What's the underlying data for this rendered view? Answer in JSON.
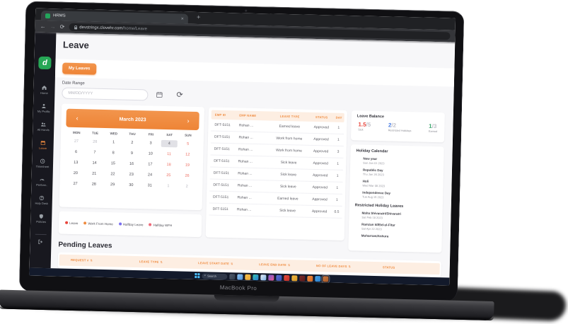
{
  "laptop": {
    "label": "MacBook Pro"
  },
  "browser": {
    "tab_title": "HRMS",
    "url_host": "devstringx.clovehr.com",
    "url_path": "/home/Leave"
  },
  "icons": {
    "back": "←",
    "forward": "→",
    "refresh": "⟳",
    "close_tab": "×",
    "new_tab": "+",
    "chevron_left": "‹",
    "chevron_right": "›",
    "sort": "⇅",
    "page_refresh": "⟳",
    "search": "⌕"
  },
  "sidebar": {
    "logo_letter": "d",
    "items": [
      {
        "label": "Home",
        "icon": "home"
      },
      {
        "label": "My Profile",
        "icon": "user"
      },
      {
        "label": "All Hands",
        "icon": "users"
      },
      {
        "label": "Leave",
        "icon": "calendar",
        "active": true
      },
      {
        "label": "Timesheet",
        "icon": "clock"
      },
      {
        "label": "Perform..",
        "icon": "gauge"
      },
      {
        "label": "Help Desk",
        "icon": "help"
      },
      {
        "label": "Policies",
        "icon": "shield"
      }
    ]
  },
  "page": {
    "title": "Leave",
    "my_leaves_button": "My Leaves",
    "date_range_label": "Date Range",
    "date_placeholder": "MM/DD/YYYY",
    "pending_title": "Pending Leaves"
  },
  "calendar": {
    "month": "March 2023",
    "weekdays": [
      "MON",
      "TUE",
      "WED",
      "THU",
      "FRI",
      "SAT",
      "SUN"
    ],
    "weeks": [
      [
        {
          "d": "27",
          "muted": true
        },
        {
          "d": "28",
          "muted": true
        },
        {
          "d": "1"
        },
        {
          "d": "2"
        },
        {
          "d": "3"
        },
        {
          "d": "4",
          "today": true
        },
        {
          "d": "5",
          "weekend": true
        }
      ],
      [
        {
          "d": "6"
        },
        {
          "d": "7"
        },
        {
          "d": "8"
        },
        {
          "d": "9"
        },
        {
          "d": "10"
        },
        {
          "d": "11",
          "weekend": true
        },
        {
          "d": "12",
          "weekend": true
        }
      ],
      [
        {
          "d": "13"
        },
        {
          "d": "14"
        },
        {
          "d": "15"
        },
        {
          "d": "16"
        },
        {
          "d": "17"
        },
        {
          "d": "18",
          "weekend": true
        },
        {
          "d": "19",
          "weekend": true
        }
      ],
      [
        {
          "d": "20"
        },
        {
          "d": "21"
        },
        {
          "d": "22"
        },
        {
          "d": "23"
        },
        {
          "d": "24"
        },
        {
          "d": "25",
          "weekend": true
        },
        {
          "d": "26",
          "weekend": true
        }
      ],
      [
        {
          "d": "27"
        },
        {
          "d": "28"
        },
        {
          "d": "29"
        },
        {
          "d": "30"
        },
        {
          "d": "31"
        },
        {
          "d": "1",
          "muted": true
        },
        {
          "d": "2",
          "muted": true
        }
      ]
    ],
    "legend": [
      {
        "label": "Leave",
        "color": "#e8443a"
      },
      {
        "label": "Work From Home",
        "color": "#ef8b3f"
      },
      {
        "label": "Halfday Leave",
        "color": "#7a6ff0"
      },
      {
        "label": "Halfday WFH",
        "color": "#ef6a7a"
      }
    ]
  },
  "leave_table": {
    "headers": [
      "EMP ID",
      "EMP NAME",
      "LEAVE TYPE",
      "STATUS",
      "DAY"
    ],
    "rows": [
      [
        "DFT-5151",
        "Rohan ...",
        "Earned leave",
        "Approved",
        "1"
      ],
      [
        "DFT-5151",
        "Rohan ...",
        "Work from home",
        "Approved",
        "1"
      ],
      [
        "DFT-5151",
        "Rohan ...",
        "Work from home",
        "Approved",
        "3"
      ],
      [
        "DFT-5151",
        "Rohan ...",
        "Sick leave",
        "Approved",
        "1"
      ],
      [
        "DFT-5151",
        "Rohan ...",
        "Sick leave",
        "Approved",
        "1"
      ],
      [
        "DFT-5151",
        "Rohan ...",
        "Sick leave",
        "Approved",
        "1"
      ],
      [
        "DFT-5151",
        "Rohan ...",
        "Earned leave",
        "Approved",
        "1"
      ],
      [
        "DFT-5151",
        "Rohan ...",
        "Sick leave",
        "Approved",
        "0.5"
      ]
    ]
  },
  "leave_balance": {
    "title": "Leave Balance",
    "items": [
      {
        "used": "1.5",
        "total": "/5",
        "label": "Sick",
        "color": "#e8443a"
      },
      {
        "used": "2",
        "total": "/2",
        "label": "Restricted Holidays",
        "color": "#4a7de2"
      },
      {
        "used": "1",
        "total": "/3",
        "label": "Earned",
        "color": "#37a46a"
      }
    ]
  },
  "holiday_calendar": {
    "title": "Holiday Calendar",
    "items": [
      {
        "name": "New year",
        "date": "Sun Jan 01 2023"
      },
      {
        "name": "Republic Day",
        "date": "Thu Jan 26 2023"
      },
      {
        "name": "Holi",
        "date": "Wed Mar 08 2023"
      },
      {
        "name": "Independence Day",
        "date": "Tue Aug 15 2023"
      }
    ]
  },
  "restricted": {
    "title": "Restricted Holiday Leaves",
    "items": [
      {
        "name": "Maha Shivaratri/Shivaratri",
        "date": "Sat Feb 18 2023"
      },
      {
        "name": "Ramzan Id/Eid-ul-Fitar",
        "date": "Sat Apr 22 2023"
      },
      {
        "name": "Muharram/Ashura",
        "date": ""
      }
    ]
  },
  "pending_table": {
    "headers": [
      "REQUEST #",
      "LEAVE TYPE",
      "LEAVE START DATE",
      "LEAVE END DATE",
      "NO OF LEAVE DAYS",
      "STATUS"
    ]
  },
  "taskbar": {
    "search_label": "Search",
    "icons": [
      {
        "name": "task-view",
        "g": [
          "#4f5b6e",
          "#2f3a4a"
        ]
      },
      {
        "name": "outlook",
        "g": [
          "#8ec7f5",
          "#4f8fd6"
        ]
      },
      {
        "name": "file-explorer",
        "g": [
          "#f7c148",
          "#e8a63a"
        ]
      },
      {
        "name": "edge",
        "g": [
          "#35c3b0",
          "#2a7fd4"
        ]
      },
      {
        "name": "store",
        "g": [
          "#e8eef5",
          "#7fb3e8"
        ]
      },
      {
        "name": "photos",
        "g": [
          "#7a5cd6",
          "#e85a8a"
        ]
      },
      {
        "name": "teams",
        "g": [
          "#5a6fd6",
          "#3a4fb0"
        ]
      },
      {
        "name": "notifications",
        "g": [
          "#e84a3a",
          "#c03028"
        ]
      },
      {
        "name": "files",
        "g": [
          "#f0b840",
          "#d89a28"
        ]
      },
      {
        "name": "security",
        "g": [
          "#7a2a2a",
          "#5a1a1a"
        ]
      },
      {
        "name": "media",
        "g": [
          "#f08a3e",
          "#d86a20"
        ]
      },
      {
        "name": "mail",
        "g": [
          "#4aa3e8",
          "#2a7fc8"
        ]
      },
      {
        "name": "hrms-app",
        "g": [
          "#c87840",
          "#a85a28"
        ],
        "active": true
      }
    ]
  }
}
